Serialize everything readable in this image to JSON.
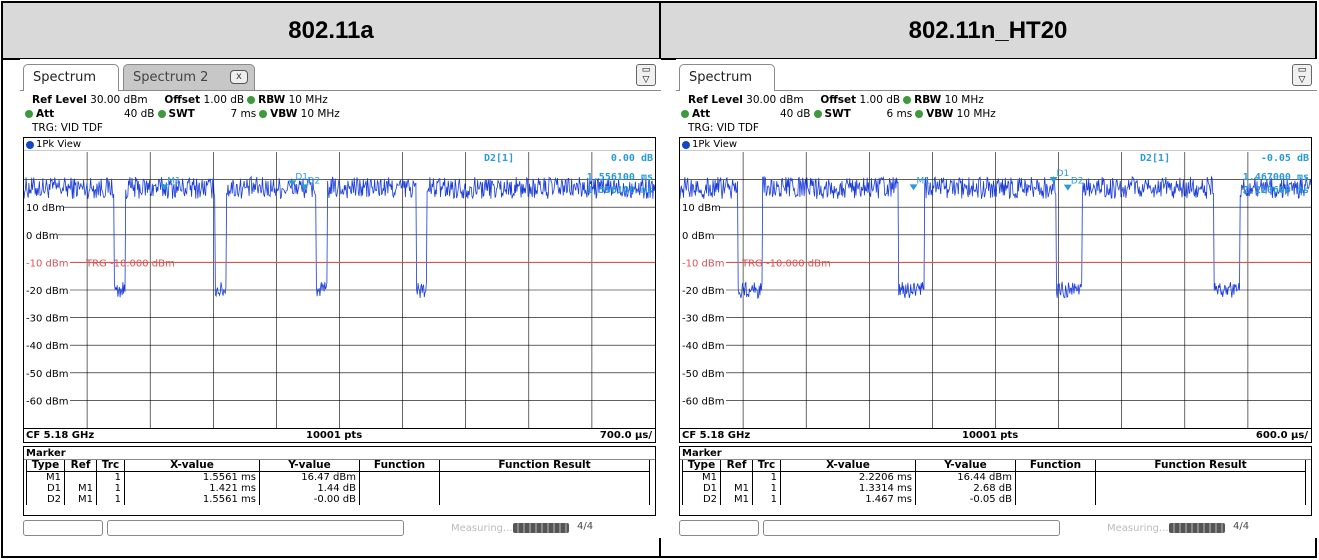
{
  "headers": {
    "left": "802.11a",
    "right": "802.11n_HT20"
  },
  "panels": [
    {
      "tabs": {
        "active": "Spectrum",
        "inactive": "Spectrum 2",
        "close": "x"
      },
      "settings": {
        "ref_level_label": "Ref Level",
        "ref_level": "30.00 dBm",
        "offset_label": "Offset",
        "offset": "1.00 dB",
        "rbw_label": "RBW",
        "rbw": "10 MHz",
        "att_label": "Att",
        "att": "40 dB",
        "swt_label": "SWT",
        "swt": "7 ms",
        "vbw_label": "VBW",
        "vbw": "10 MHz",
        "trigger": "TRG: VID TDF"
      },
      "view_label": "1Pk View",
      "delta_marker": "D2[1]",
      "delta_values": [
        "0.00 dB",
        "1.556100 ms",
        "1.556100 ms"
      ],
      "y_ticks": [
        "10 dBm",
        "0 dBm",
        "-10 dBm",
        "-20 dBm",
        "-30 dBm",
        "-40 dBm",
        "-50 dBm",
        "-60 dBm"
      ],
      "trigger_line": "TRG -10.000 dBm",
      "marker_tags": [
        "M1",
        "D1",
        "D2"
      ],
      "footer": {
        "cf": "CF 5.18 GHz",
        "pts": "10001 pts",
        "span": "700.0 µs/"
      },
      "marker_table": {
        "title": "Marker",
        "headers": [
          "Type",
          "Ref",
          "Trc",
          "X-value",
          "Y-value",
          "Function",
          "Function Result"
        ],
        "rows": [
          [
            "M1",
            "",
            "1",
            "1.5561 ms",
            "16.47 dBm",
            "",
            ""
          ],
          [
            "D1",
            "M1",
            "1",
            "1.421 ms",
            "1.44 dB",
            "",
            ""
          ],
          [
            "D2",
            "M1",
            "1",
            "1.5561 ms",
            "-0.00 dB",
            "",
            ""
          ]
        ]
      },
      "status": {
        "measuring": "Measuring...",
        "icon": "4/4"
      }
    },
    {
      "tabs": {
        "active": "Spectrum",
        "inactive": "",
        "close": ""
      },
      "settings": {
        "ref_level_label": "Ref Level",
        "ref_level": "30.00 dBm",
        "offset_label": "Offset",
        "offset": "1.00 dB",
        "rbw_label": "RBW",
        "rbw": "10 MHz",
        "att_label": "Att",
        "att": "40 dB",
        "swt_label": "SWT",
        "swt": "6 ms",
        "vbw_label": "VBW",
        "vbw": "10 MHz",
        "trigger": "TRG: VID TDF"
      },
      "view_label": "1Pk View",
      "delta_marker": "D2[1]",
      "delta_values": [
        "-0.05 dB",
        "1.467000 ms",
        "2.220600 ms"
      ],
      "y_ticks": [
        "10 dBm",
        "0 dBm",
        "-10 dBm",
        "-20 dBm",
        "-30 dBm",
        "-40 dBm",
        "-50 dBm",
        "-60 dBm"
      ],
      "trigger_line": "TRG -10.000 dBm",
      "marker_tags": [
        "M1",
        "D1",
        "D2"
      ],
      "footer": {
        "cf": "CF 5.18 GHz",
        "pts": "10001 pts",
        "span": "600.0 µs/"
      },
      "marker_table": {
        "title": "Marker",
        "headers": [
          "Type",
          "Ref",
          "Trc",
          "X-value",
          "Y-value",
          "Function",
          "Function Result"
        ],
        "rows": [
          [
            "M1",
            "",
            "1",
            "2.2206 ms",
            "16.44 dBm",
            "",
            ""
          ],
          [
            "D1",
            "M1",
            "1",
            "1.3314 ms",
            "2.68 dB",
            "",
            ""
          ],
          [
            "D2",
            "M1",
            "1",
            "1.467 ms",
            "-0.05 dB",
            "",
            ""
          ]
        ]
      },
      "status": {
        "measuring": "Measuring...",
        "icon": "4/4"
      }
    }
  ],
  "chart_data": [
    {
      "type": "line",
      "title": "1Pk View",
      "xlabel": "",
      "ylabel": "dBm",
      "x_unit": "ms",
      "xlim": [
        0,
        7.0
      ],
      "ylim": [
        -70,
        30
      ],
      "ref_level": 30,
      "trigger_level": -10,
      "signal_on_level": 17,
      "signal_off_level": -20,
      "off_gaps_ms": [
        [
          1.0,
          1.12
        ],
        [
          2.12,
          2.24
        ],
        [
          3.24,
          3.36
        ],
        [
          4.35,
          4.47
        ]
      ],
      "markers": [
        {
          "name": "M1",
          "x": 1.5561,
          "y": 16.47
        },
        {
          "name": "D1",
          "x": 2.9771,
          "y": 17.91
        },
        {
          "name": "D2",
          "x": 3.1122,
          "y": 16.47
        }
      ],
      "colors": {
        "trace": "#1a3cd8",
        "trigger": "#e05050",
        "marker": "#2a9ad8"
      }
    },
    {
      "type": "line",
      "title": "1Pk View",
      "xlabel": "",
      "ylabel": "dBm",
      "x_unit": "ms",
      "xlim": [
        0,
        6.0
      ],
      "ylim": [
        -70,
        30
      ],
      "ref_level": 30,
      "trigger_level": -10,
      "signal_on_level": 17,
      "signal_off_level": -20,
      "off_gaps_ms": [
        [
          0.55,
          0.78
        ],
        [
          2.08,
          2.32
        ],
        [
          3.58,
          3.82
        ],
        [
          5.08,
          5.32
        ]
      ],
      "markers": [
        {
          "name": "M1",
          "x": 2.2206,
          "y": 16.44
        },
        {
          "name": "D1",
          "x": 3.552,
          "y": 19.12
        },
        {
          "name": "D2",
          "x": 3.6876,
          "y": 16.39
        }
      ],
      "colors": {
        "trace": "#1a3cd8",
        "trigger": "#e05050",
        "marker": "#2a9ad8"
      }
    }
  ]
}
